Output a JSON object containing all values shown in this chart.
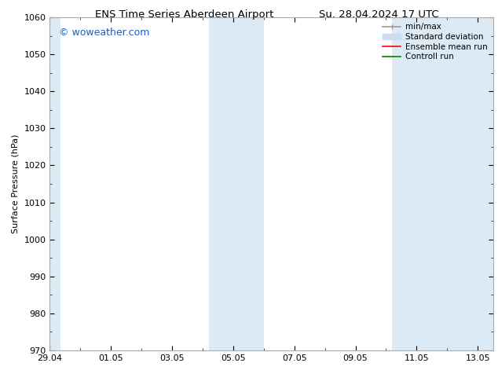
{
  "title": "ENS Time Series Aberdeen Airport",
  "title_right": "Su. 28.04.2024 17 UTC",
  "ylabel": "Surface Pressure (hPa)",
  "ylim": [
    970,
    1060
  ],
  "yticks": [
    970,
    980,
    990,
    1000,
    1010,
    1020,
    1030,
    1040,
    1050,
    1060
  ],
  "x_tick_labels": [
    "29.04",
    "01.05",
    "03.05",
    "05.05",
    "07.05",
    "09.05",
    "11.05",
    "13.05"
  ],
  "x_tick_positions": [
    0,
    2,
    4,
    6,
    8,
    10,
    12,
    14
  ],
  "xlim": [
    0,
    14.5
  ],
  "shaded_bands": [
    {
      "x_start": 0.0,
      "x_end": 0.35,
      "color": "#dbeaf5"
    },
    {
      "x_start": 5.2,
      "x_end": 7.0,
      "color": "#dbeaf5"
    },
    {
      "x_start": 11.2,
      "x_end": 14.5,
      "color": "#dbeaf5"
    }
  ],
  "watermark": "© woweather.com",
  "watermark_color": "#1a5dcc",
  "legend_items": [
    {
      "label": "min/max",
      "color": "#999999"
    },
    {
      "label": "Standard deviation",
      "color": "#ccdded"
    },
    {
      "label": "Ensemble mean run",
      "color": "red"
    },
    {
      "label": "Controll run",
      "color": "green"
    }
  ],
  "bg_color": "#ffffff",
  "plot_bg_color": "#ffffff",
  "spine_color": "#aaaaaa",
  "tick_color": "#000000",
  "font_size": 8,
  "title_font_size": 9.5
}
